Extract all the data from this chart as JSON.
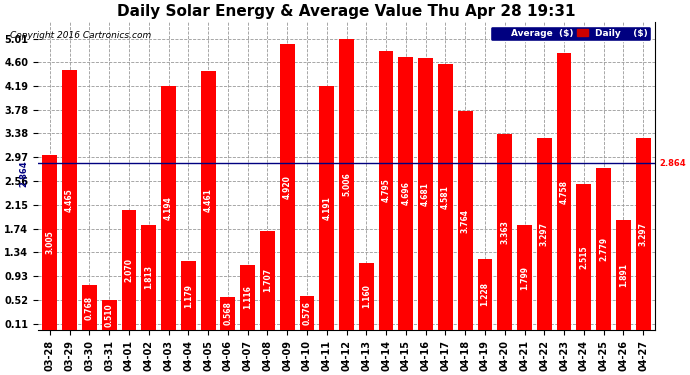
{
  "title": "Daily Solar Energy & Average Value Thu Apr 28 19:31",
  "copyright": "Copyright 2016 Cartronics.com",
  "categories": [
    "03-28",
    "03-29",
    "03-30",
    "03-31",
    "04-01",
    "04-02",
    "04-03",
    "04-04",
    "04-05",
    "04-06",
    "04-07",
    "04-08",
    "04-09",
    "04-10",
    "04-11",
    "04-12",
    "04-13",
    "04-14",
    "04-15",
    "04-16",
    "04-17",
    "04-18",
    "04-19",
    "04-20",
    "04-21",
    "04-22",
    "04-23",
    "04-24",
    "04-25",
    "04-26",
    "04-27"
  ],
  "values": [
    3.005,
    4.465,
    0.768,
    0.51,
    2.07,
    1.813,
    4.194,
    1.179,
    4.461,
    0.568,
    1.116,
    1.707,
    4.92,
    0.576,
    4.191,
    5.006,
    1.16,
    4.795,
    4.696,
    4.681,
    4.581,
    3.764,
    1.228,
    3.363,
    1.799,
    3.297,
    4.758,
    2.515,
    2.779,
    1.891,
    3.297
  ],
  "average": 2.864,
  "bar_color": "#ff0000",
  "avg_line_color": "#000080",
  "background_color": "#ffffff",
  "plot_bg_color": "#ffffff",
  "grid_color": "#999999",
  "yticks": [
    0.11,
    0.52,
    0.93,
    1.34,
    1.74,
    2.15,
    2.56,
    2.97,
    3.38,
    3.78,
    4.19,
    4.6,
    5.01
  ],
  "ymin": 0.0,
  "ymax": 5.3,
  "title_fontsize": 11,
  "tick_fontsize": 7,
  "value_fontsize": 5.5,
  "legend_bg_color": "#000080",
  "legend_daily_color": "#cc0000"
}
